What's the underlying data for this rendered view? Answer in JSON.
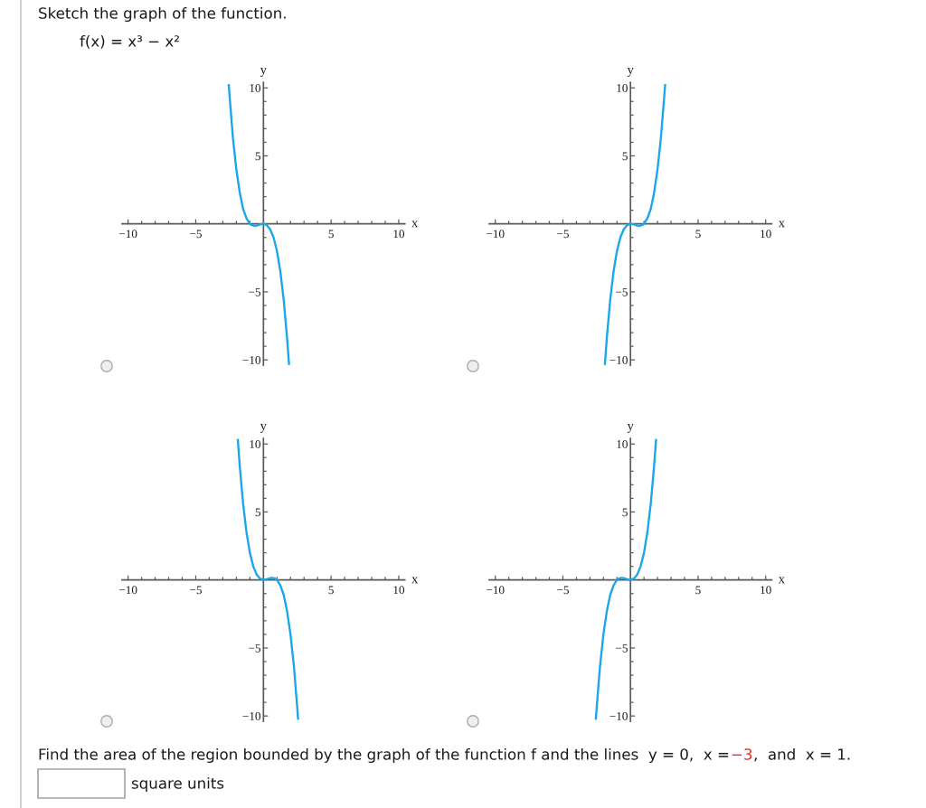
{
  "chart_data": [
    {
      "type": "line",
      "title": "Sketch the graph of the function.",
      "subtitle": "f(x) = x³ − x²",
      "xlabel": "x",
      "ylabel": "y",
      "xlim": [
        -10.45,
        10.45
      ],
      "ylim": [
        -10.4,
        10.4
      ],
      "xticks": [
        {
          "value": -10,
          "label": "−10"
        },
        {
          "value": -9,
          "label": null
        },
        {
          "value": -8,
          "label": null
        },
        {
          "value": -7,
          "label": null
        },
        {
          "value": -6,
          "label": null
        },
        {
          "value": -5,
          "label": "−5"
        },
        {
          "value": -4,
          "label": null
        },
        {
          "value": -3,
          "label": null
        },
        {
          "value": -2,
          "label": null
        },
        {
          "value": -1,
          "label": null
        },
        {
          "value": 1,
          "label": null
        },
        {
          "value": 2,
          "label": null
        },
        {
          "value": 3,
          "label": null
        },
        {
          "value": 4,
          "label": null
        },
        5,
        {
          "value": 6,
          "label": null
        },
        {
          "value": 7,
          "label": null
        },
        {
          "value": 8,
          "label": null
        },
        {
          "value": 9,
          "label": null
        },
        10
      ],
      "yticks": [
        {
          "value": -10,
          "label": "−10"
        },
        {
          "value": -9,
          "label": null
        },
        {
          "value": -8,
          "label": null
        },
        {
          "value": -7,
          "label": null
        },
        {
          "value": -6,
          "label": null
        },
        {
          "value": -5,
          "label": "−5"
        },
        {
          "value": -4,
          "label": null
        },
        {
          "value": -3,
          "label": null
        },
        {
          "value": -2,
          "label": null
        },
        {
          "value": -1,
          "label": null
        },
        {
          "value": 1,
          "label": null
        },
        {
          "value": 2,
          "label": null
        },
        {
          "value": 3,
          "label": null
        },
        {
          "value": 4,
          "label": null
        },
        5,
        {
          "value": 6,
          "label": null
        },
        {
          "value": 7,
          "label": null
        },
        {
          "value": 8,
          "label": null
        },
        {
          "value": 9,
          "label": null
        },
        10
      ],
      "series": [
        {
          "color": "#1aa6ea",
          "x": [
            -2.56,
            -2.5,
            -2.25,
            -2,
            -1.75,
            -1.5,
            -1.25,
            -1,
            -0.85,
            -0.67,
            -0.5,
            -0.25,
            0,
            0.25,
            0.5,
            0.75,
            1,
            1.25,
            1.5,
            1.75,
            1.89
          ],
          "values": [
            10.2,
            9.4,
            6.3,
            4,
            2.3,
            1.1,
            0.4,
            0,
            -0.1,
            -0.15,
            -0.13,
            -0.05,
            0,
            -0.1,
            -0.4,
            -1,
            -2,
            -3.5,
            -5.6,
            -8.4,
            -10.3
          ]
        }
      ]
    },
    {
      "type": "line",
      "xlabel": "x",
      "ylabel": "y",
      "xlim": [
        -10.45,
        10.45
      ],
      "ylim": [
        -10.4,
        10.4
      ],
      "xticks": [
        {
          "value": -10,
          "label": "−10"
        },
        {
          "value": -9,
          "label": null
        },
        {
          "value": -8,
          "label": null
        },
        {
          "value": -7,
          "label": null
        },
        {
          "value": -6,
          "label": null
        },
        {
          "value": -5,
          "label": "−5"
        },
        {
          "value": -4,
          "label": null
        },
        {
          "value": -3,
          "label": null
        },
        {
          "value": -2,
          "label": null
        },
        {
          "value": -1,
          "label": null
        },
        {
          "value": 1,
          "label": null
        },
        {
          "value": 2,
          "label": null
        },
        {
          "value": 3,
          "label": null
        },
        {
          "value": 4,
          "label": null
        },
        5,
        {
          "value": 6,
          "label": null
        },
        {
          "value": 7,
          "label": null
        },
        {
          "value": 8,
          "label": null
        },
        {
          "value": 9,
          "label": null
        },
        10
      ],
      "yticks": [
        {
          "value": -10,
          "label": "−10"
        },
        {
          "value": -9,
          "label": null
        },
        {
          "value": -8,
          "label": null
        },
        {
          "value": -7,
          "label": null
        },
        {
          "value": -6,
          "label": null
        },
        {
          "value": -5,
          "label": "−5"
        },
        {
          "value": -4,
          "label": null
        },
        {
          "value": -3,
          "label": null
        },
        {
          "value": -2,
          "label": null
        },
        {
          "value": -1,
          "label": null
        },
        {
          "value": 1,
          "label": null
        },
        {
          "value": 2,
          "label": null
        },
        {
          "value": 3,
          "label": null
        },
        {
          "value": 4,
          "label": null
        },
        5,
        {
          "value": 6,
          "label": null
        },
        {
          "value": 7,
          "label": null
        },
        {
          "value": 8,
          "label": null
        },
        {
          "value": 9,
          "label": null
        },
        10
      ],
      "series": [
        {
          "color": "#1aa6ea",
          "x": [
            -1.89,
            -1.75,
            -1.5,
            -1.25,
            -1,
            -0.75,
            -0.5,
            -0.25,
            0,
            0.25,
            0.5,
            0.67,
            0.85,
            1,
            1.25,
            1.5,
            1.75,
            2,
            2.25,
            2.5,
            2.56
          ],
          "values": [
            -10.3,
            -8.4,
            -5.6,
            -3.5,
            -2,
            -1,
            -0.4,
            -0.1,
            0,
            -0.05,
            -0.13,
            -0.15,
            -0.1,
            0,
            0.4,
            1.1,
            2.3,
            4,
            6.3,
            9.4,
            10.2
          ]
        }
      ]
    },
    {
      "type": "line",
      "xlabel": "x",
      "ylabel": "y",
      "xlim": [
        -10.45,
        10.45
      ],
      "ylim": [
        -10.4,
        10.4
      ],
      "xticks": [
        {
          "value": -10,
          "label": "−10"
        },
        {
          "value": -9,
          "label": null
        },
        {
          "value": -8,
          "label": null
        },
        {
          "value": -7,
          "label": null
        },
        {
          "value": -6,
          "label": null
        },
        {
          "value": -5,
          "label": "−5"
        },
        {
          "value": -4,
          "label": null
        },
        {
          "value": -3,
          "label": null
        },
        {
          "value": -2,
          "label": null
        },
        {
          "value": -1,
          "label": null
        },
        {
          "value": 1,
          "label": null
        },
        {
          "value": 2,
          "label": null
        },
        {
          "value": 3,
          "label": null
        },
        {
          "value": 4,
          "label": null
        },
        5,
        {
          "value": 6,
          "label": null
        },
        {
          "value": 7,
          "label": null
        },
        {
          "value": 8,
          "label": null
        },
        {
          "value": 9,
          "label": null
        },
        10
      ],
      "yticks": [
        {
          "value": -10,
          "label": "−10"
        },
        {
          "value": -9,
          "label": null
        },
        {
          "value": -8,
          "label": null
        },
        {
          "value": -7,
          "label": null
        },
        {
          "value": -6,
          "label": null
        },
        {
          "value": -5,
          "label": "−5"
        },
        {
          "value": -4,
          "label": null
        },
        {
          "value": -3,
          "label": null
        },
        {
          "value": -2,
          "label": null
        },
        {
          "value": -1,
          "label": null
        },
        {
          "value": 1,
          "label": null
        },
        {
          "value": 2,
          "label": null
        },
        {
          "value": 3,
          "label": null
        },
        {
          "value": 4,
          "label": null
        },
        5,
        {
          "value": 6,
          "label": null
        },
        {
          "value": 7,
          "label": null
        },
        {
          "value": 8,
          "label": null
        },
        {
          "value": 9,
          "label": null
        },
        10
      ],
      "series": [
        {
          "color": "#1aa6ea",
          "x": [
            -1.89,
            -1.75,
            -1.5,
            -1.25,
            -1,
            -0.75,
            -0.5,
            -0.25,
            0,
            0.25,
            0.5,
            0.67,
            0.85,
            1,
            1.25,
            1.5,
            1.75,
            2,
            2.25,
            2.5,
            2.56
          ],
          "values": [
            10.3,
            8.4,
            5.6,
            3.5,
            2,
            1,
            0.4,
            0.1,
            0,
            0.05,
            0.13,
            0.15,
            0.1,
            0,
            -0.4,
            -1.1,
            -2.3,
            -4,
            -6.3,
            -9.4,
            -10.2
          ]
        }
      ]
    },
    {
      "type": "line",
      "xlabel": "x",
      "ylabel": "y",
      "xlim": [
        -10.45,
        10.45
      ],
      "ylim": [
        -10.4,
        10.4
      ],
      "xticks": [
        {
          "value": -10,
          "label": "−10"
        },
        {
          "value": -9,
          "label": null
        },
        {
          "value": -8,
          "label": null
        },
        {
          "value": -7,
          "label": null
        },
        {
          "value": -6,
          "label": null
        },
        {
          "value": -5,
          "label": "−5"
        },
        {
          "value": -4,
          "label": null
        },
        {
          "value": -3,
          "label": null
        },
        {
          "value": -2,
          "label": null
        },
        {
          "value": -1,
          "label": null
        },
        {
          "value": 1,
          "label": null
        },
        {
          "value": 2,
          "label": null
        },
        {
          "value": 3,
          "label": null
        },
        {
          "value": 4,
          "label": null
        },
        5,
        {
          "value": 6,
          "label": null
        },
        {
          "value": 7,
          "label": null
        },
        {
          "value": 8,
          "label": null
        },
        {
          "value": 9,
          "label": null
        },
        10
      ],
      "yticks": [
        {
          "value": -10,
          "label": "−10"
        },
        {
          "value": -9,
          "label": null
        },
        {
          "value": -8,
          "label": null
        },
        {
          "value": -7,
          "label": null
        },
        {
          "value": -6,
          "label": null
        },
        {
          "value": -5,
          "label": "−5"
        },
        {
          "value": -4,
          "label": null
        },
        {
          "value": -3,
          "label": null
        },
        {
          "value": -2,
          "label": null
        },
        {
          "value": -1,
          "label": null
        },
        {
          "value": 1,
          "label": null
        },
        {
          "value": 2,
          "label": null
        },
        {
          "value": 3,
          "label": null
        },
        {
          "value": 4,
          "label": null
        },
        5,
        {
          "value": 6,
          "label": null
        },
        {
          "value": 7,
          "label": null
        },
        {
          "value": 8,
          "label": null
        },
        {
          "value": 9,
          "label": null
        },
        10
      ],
      "series": [
        {
          "color": "#1aa6ea",
          "x": [
            -2.56,
            -2.5,
            -2.25,
            -2,
            -1.75,
            -1.5,
            -1.25,
            -1,
            -0.85,
            -0.67,
            -0.5,
            -0.25,
            0,
            0.25,
            0.5,
            0.75,
            1,
            1.25,
            1.5,
            1.75,
            1.89
          ],
          "values": [
            -10.2,
            -9.4,
            -6.3,
            -4,
            -2.3,
            -1.1,
            -0.4,
            0,
            0.1,
            0.15,
            0.13,
            0.05,
            0,
            0.1,
            0.4,
            1,
            2,
            3.5,
            5.6,
            8.4,
            10.3
          ]
        }
      ],
      "annotations": [
        "Find the area of the region bounded by the graph of the function f and the lines  y = 0,  x =",
        "−3",
        ",  and  x = 1.",
        "square units"
      ]
    }
  ]
}
